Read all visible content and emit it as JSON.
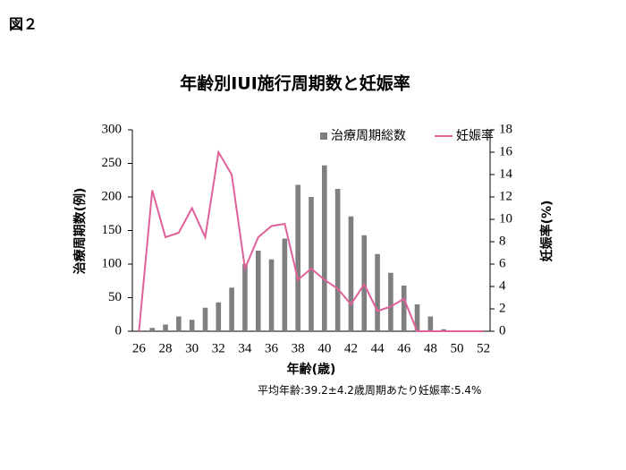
{
  "chart_data": {
    "type": "bar",
    "figure_label": "図２",
    "title": "年齢別IUI施行周期数と妊娠率",
    "x_label": "年齢(歳)",
    "y_label": "治療周期数(例)",
    "y2_label": "妊娠率(%)",
    "note": "平均年齢:39.2±4.2歳周期あたり妊娠率:5.4%",
    "categories": [
      "26",
      null,
      "28",
      null,
      "30",
      null,
      "32",
      null,
      "34",
      null,
      "36",
      null,
      "38",
      null,
      "40",
      null,
      "42",
      null,
      "44",
      null,
      "46",
      null,
      "48",
      null,
      "50",
      null,
      "52"
    ],
    "series": [
      {
        "name": "治療周期総数",
        "color": "#7f7f7f",
        "type": "bar",
        "values": [
          0,
          5,
          10,
          22,
          17,
          35,
          43,
          65,
          100,
          120,
          107,
          138,
          218,
          200,
          247,
          212,
          171,
          143,
          115,
          87,
          68,
          40,
          22,
          3,
          1,
          1,
          0
        ]
      },
      {
        "name": "妊娠率",
        "color": "#e0609a",
        "type": "line",
        "axis": "y2",
        "values": [
          0,
          12.6,
          8.4,
          8.8,
          11.0,
          8.4,
          16.0,
          14.0,
          5.6,
          8.4,
          9.4,
          9.6,
          4.6,
          5.6,
          4.6,
          3.8,
          2.4,
          4.2,
          1.8,
          2.2,
          2.9,
          0,
          0,
          0,
          0,
          0,
          0
        ]
      }
    ],
    "ylim": [
      0,
      300
    ],
    "yticks": [
      0,
      50,
      100,
      150,
      200,
      250,
      300
    ],
    "y2lim": [
      0,
      18
    ],
    "y2ticks": [
      0,
      2,
      4,
      6,
      8,
      10,
      12,
      14,
      16,
      18
    ],
    "legend": "top-right"
  }
}
